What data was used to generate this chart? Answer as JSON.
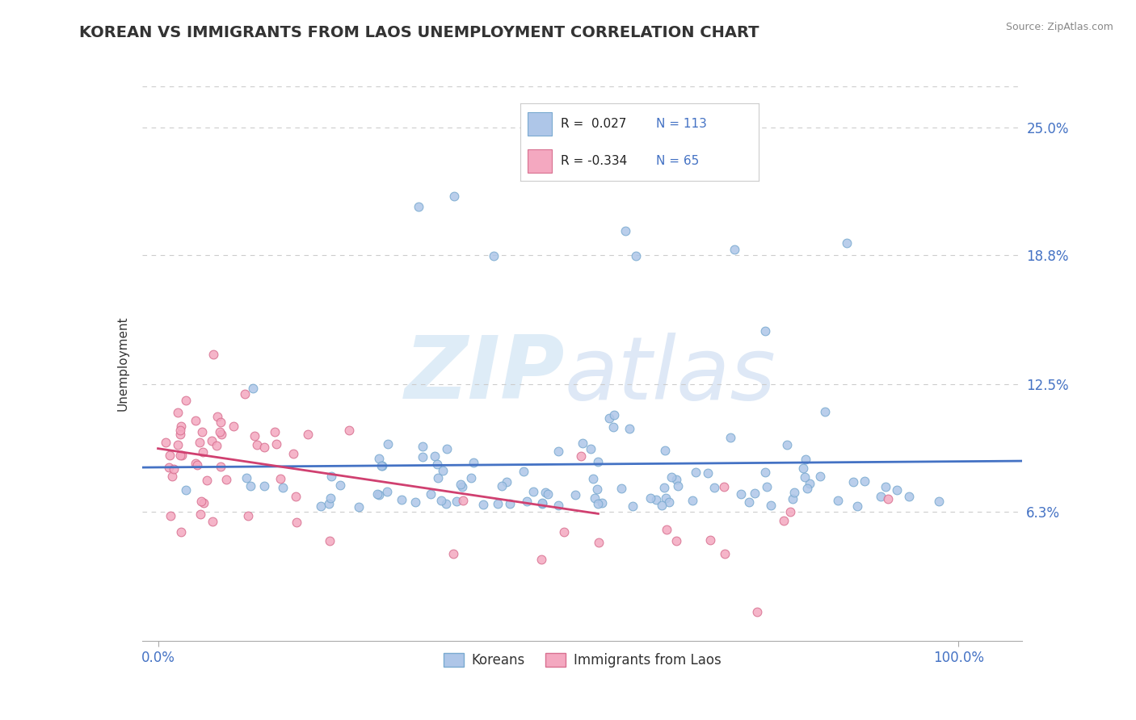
{
  "title": "KOREAN VS IMMIGRANTS FROM LAOS UNEMPLOYMENT CORRELATION CHART",
  "source": "Source: ZipAtlas.com",
  "ylabel": "Unemployment",
  "ytick_labels": [
    "6.3%",
    "12.5%",
    "18.8%",
    "25.0%"
  ],
  "ytick_values": [
    0.063,
    0.125,
    0.188,
    0.25
  ],
  "ylim": [
    0.0,
    0.27
  ],
  "xlim": [
    -0.02,
    1.08
  ],
  "title_color": "#333333",
  "title_fontsize": 14,
  "tick_color": "#4472c4",
  "source_color": "#888888",
  "korean_color": "#aec6e8",
  "korean_edge_color": "#7aaad0",
  "laos_color": "#f4a8c0",
  "laos_edge_color": "#d87090",
  "korean_R": 0.027,
  "korean_N": 113,
  "laos_R": -0.334,
  "laos_N": 65,
  "korean_trend_color": "#4472c4",
  "laos_trend_color": "#d04070",
  "grid_color": "#cccccc",
  "bg_color": "#ffffff",
  "legend_korean": "Koreans",
  "legend_laos": "Immigrants from Laos"
}
